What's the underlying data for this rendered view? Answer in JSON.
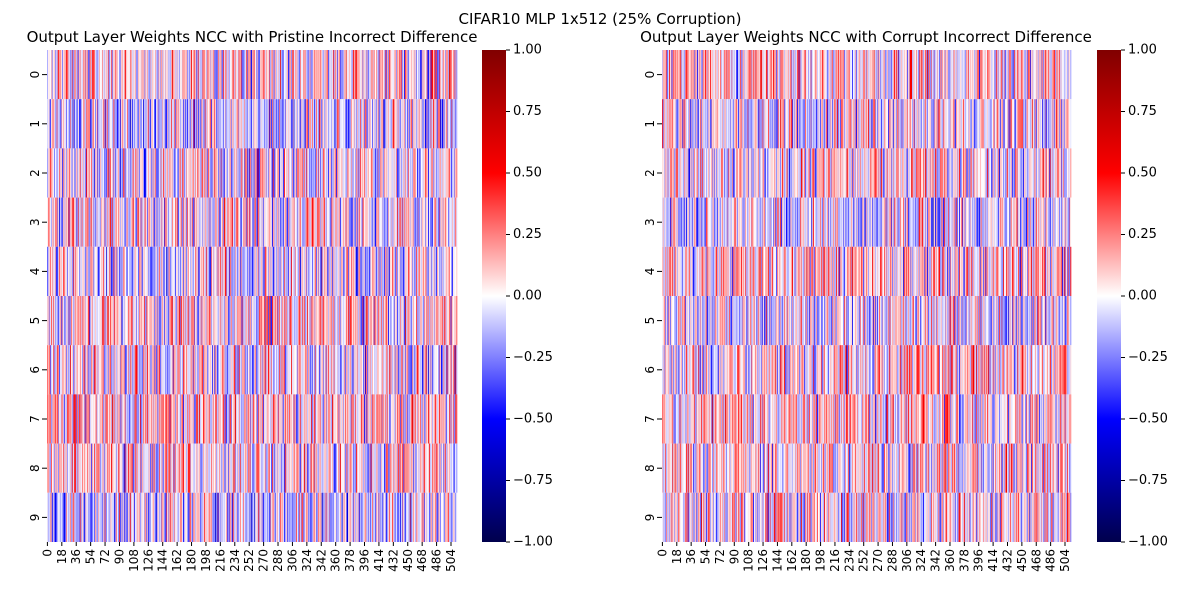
{
  "figure": {
    "suptitle": "CIFAR10 MLP 1x512 (25% Corruption)"
  },
  "colors": {
    "cmap": "seismic",
    "cmap_low": "#00004c",
    "cmap_mid": "#ffffff",
    "cmap_high": "#800000"
  },
  "chart_data": [
    {
      "type": "heatmap",
      "title": "Output Layer Weights NCC with Pristine Incorrect Difference",
      "xlabel": "",
      "ylabel": "",
      "rows": [
        "0",
        "1",
        "2",
        "3",
        "4",
        "5",
        "6",
        "7",
        "8",
        "9"
      ],
      "n_columns": 512,
      "x_tick_labels": [
        "0",
        "18",
        "36",
        "54",
        "72",
        "90",
        "108",
        "126",
        "144",
        "162",
        "180",
        "198",
        "216",
        "234",
        "252",
        "270",
        "288",
        "306",
        "324",
        "342",
        "360",
        "378",
        "396",
        "414",
        "432",
        "450",
        "468",
        "486",
        "504"
      ],
      "vmin": -1.0,
      "vmax": 1.0,
      "colorbar_ticks": [
        "1.00",
        "0.75",
        "0.50",
        "0.25",
        "0.00",
        "−0.25",
        "−0.50",
        "−0.75",
        "−1.00"
      ],
      "value_note": "dense per-cell values not legible; approx. range -0.6 to 0.7, mostly within ±0.3"
    },
    {
      "type": "heatmap",
      "title": "Output Layer Weights NCC with Corrupt Incorrect Difference",
      "xlabel": "",
      "ylabel": "",
      "rows": [
        "0",
        "1",
        "2",
        "3",
        "4",
        "5",
        "6",
        "7",
        "8",
        "9"
      ],
      "n_columns": 512,
      "x_tick_labels": [
        "0",
        "18",
        "36",
        "54",
        "72",
        "90",
        "108",
        "126",
        "144",
        "162",
        "180",
        "198",
        "216",
        "234",
        "252",
        "270",
        "288",
        "306",
        "324",
        "342",
        "360",
        "378",
        "396",
        "414",
        "432",
        "450",
        "468",
        "486",
        "504"
      ],
      "vmin": -1.0,
      "vmax": 1.0,
      "colorbar_ticks": [
        "1.00",
        "0.75",
        "0.50",
        "0.25",
        "0.00",
        "−0.25",
        "−0.50",
        "−0.75",
        "−1.00"
      ],
      "value_note": "dense per-cell values not legible; approx. range -0.6 to 0.7, mostly within ±0.3"
    }
  ]
}
